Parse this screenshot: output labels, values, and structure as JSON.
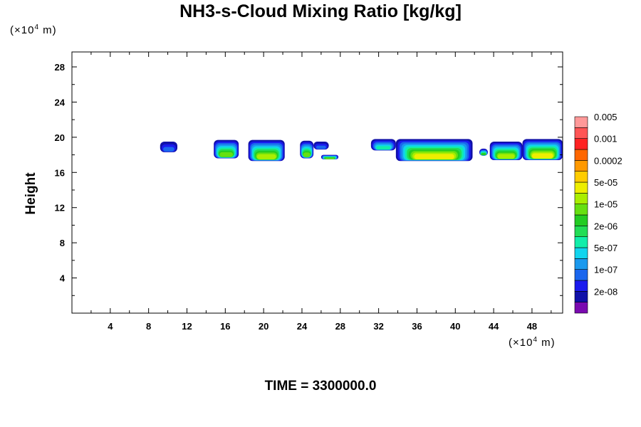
{
  "title": "NH3-s-Cloud Mixing Ratio [kg/kg]",
  "y_unit": {
    "prefix": "(×10",
    "exp": "4",
    "suffix": " m)"
  },
  "x_unit": {
    "prefix": "(×10",
    "exp": "4",
    "suffix": " m)"
  },
  "time_label": "TIME = 3300000.0",
  "chart_data": {
    "type": "heatmap",
    "title": "NH3-s-Cloud Mixing Ratio [kg/kg]",
    "xlabel": "",
    "ylabel": "Height",
    "xlim": [
      0,
      51.2
    ],
    "ylim": [
      0,
      29.7
    ],
    "xticks": [
      4,
      8,
      12,
      16,
      20,
      24,
      28,
      32,
      36,
      40,
      44,
      48
    ],
    "yticks": [
      4,
      8,
      12,
      16,
      20,
      24,
      28
    ],
    "colorbar": {
      "levels": [
        "2e-08",
        "1e-07",
        "5e-07",
        "2e-06",
        "1e-05",
        "5e-05",
        "0.0002",
        "0.001",
        "0.005"
      ],
      "colors": [
        "#7a0ab0",
        "#1010a8",
        "#1a1aee",
        "#1a66ee",
        "#1a99ee",
        "#11d4ee",
        "#11eeaa",
        "#22dd55",
        "#22cc22",
        "#66e011",
        "#aaee00",
        "#eeee00",
        "#ffcc00",
        "#ff9900",
        "#ff6600",
        "#ff2222",
        "#ff5555",
        "#ff9999"
      ]
    },
    "cloud_regions": [
      {
        "x0": 9.2,
        "x1": 11.0,
        "ytop": 19.5,
        "ybase": 18.3,
        "max_level": 3
      },
      {
        "x0": 14.8,
        "x1": 17.4,
        "ytop": 19.7,
        "ybase": 17.6,
        "max_level": 9
      },
      {
        "x0": 18.4,
        "x1": 22.2,
        "ytop": 19.7,
        "ybase": 17.3,
        "max_level": 10
      },
      {
        "x0": 23.8,
        "x1": 25.2,
        "ytop": 19.6,
        "ybase": 17.6,
        "max_level": 9
      },
      {
        "x0": 25.2,
        "x1": 26.8,
        "ytop": 19.5,
        "ybase": 18.6,
        "max_level": 3
      },
      {
        "x0": 26.0,
        "x1": 27.8,
        "ytop": 18.0,
        "ybase": 17.5,
        "max_level": 9
      },
      {
        "x0": 31.2,
        "x1": 33.8,
        "ytop": 19.8,
        "ybase": 18.5,
        "max_level": 6
      },
      {
        "x0": 33.8,
        "x1": 41.8,
        "ytop": 19.8,
        "ybase": 17.3,
        "max_level": 11
      },
      {
        "x0": 42.5,
        "x1": 43.4,
        "ytop": 18.7,
        "ybase": 17.9,
        "max_level": 8
      },
      {
        "x0": 43.6,
        "x1": 47.0,
        "ytop": 19.5,
        "ybase": 17.4,
        "max_level": 10
      },
      {
        "x0": 47.0,
        "x1": 51.2,
        "ytop": 19.8,
        "ybase": 17.4,
        "max_level": 11
      }
    ]
  }
}
